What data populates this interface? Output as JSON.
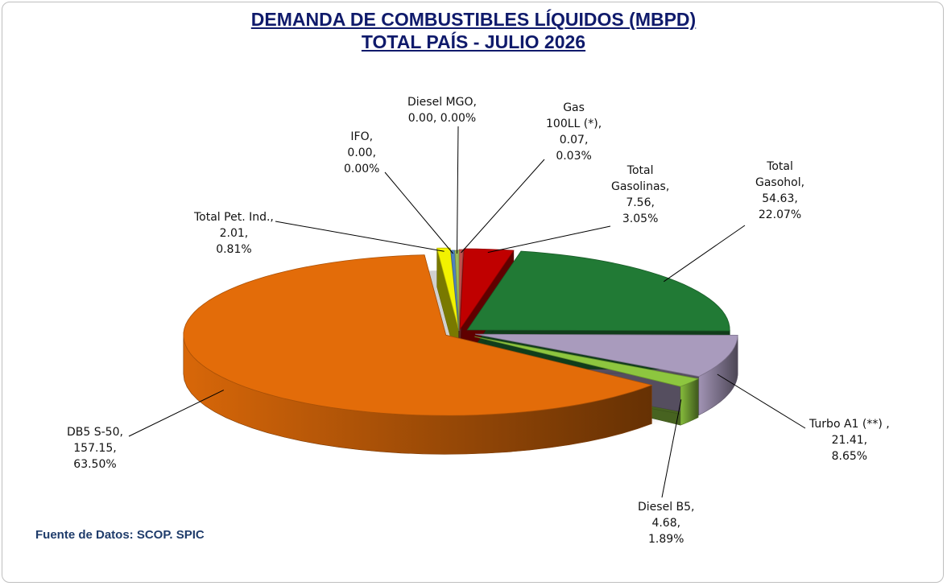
{
  "header": {
    "title_line1": "DEMANDA DE COMBUSTIBLES LÍQUIDOS (MBPD)",
    "title_line2": "TOTAL PAÍS  - JULIO 2026"
  },
  "footer": {
    "source": "Fuente de Datos: SCOP. SPIC"
  },
  "chart_data": {
    "type": "pie",
    "title": "DEMANDA DE COMBUSTIBLES LÍQUIDOS (MBPD) TOTAL PAÍS - JULIO 2026",
    "legend": "none (data labels on leader lines)",
    "slices": [
      {
        "name": "Gas 100LL (*)",
        "value": 0.07,
        "percent": 0.03,
        "color": "#c0504d",
        "label_lines": [
          "Gas",
          "100LL (*),",
          "0.07,",
          "0.03%"
        ]
      },
      {
        "name": "Total Gasolinas",
        "value": 7.56,
        "percent": 3.05,
        "color": "#c00000",
        "label_lines": [
          "Total",
          "Gasolinas,",
          "7.56,",
          "3.05%"
        ]
      },
      {
        "name": "Total Gasohol",
        "value": 54.63,
        "percent": 22.07,
        "color": "#217a35",
        "label_lines": [
          "Total",
          "Gasohol,",
          "54.63,",
          "22.07%"
        ]
      },
      {
        "name": "Turbo A1 (**)",
        "value": 21.41,
        "percent": 8.65,
        "color": "#a99bbd",
        "label_lines": [
          "Turbo A1 (**) ,",
          "21.41,",
          "8.65%"
        ]
      },
      {
        "name": "Diesel B5",
        "value": 4.68,
        "percent": 1.89,
        "color": "#8dc63f",
        "label_lines": [
          "Diesel B5,",
          "4.68,",
          "1.89%"
        ]
      },
      {
        "name": "DB5 S-50",
        "value": 157.15,
        "percent": 63.5,
        "color": "#e36c09",
        "label_lines": [
          "DB5 S-50,",
          "157.15,",
          "63.50%"
        ]
      },
      {
        "name": "Total Pet. Ind.",
        "value": 2.01,
        "percent": 0.81,
        "color": "#f2f200",
        "label_lines": [
          "Total Pet. Ind.,",
          "2.01,",
          "0.81%"
        ]
      },
      {
        "name": "IFO",
        "value": 0.0,
        "percent": 0.0,
        "color": "#4f81bd",
        "label_lines": [
          "IFO,",
          "0.00,",
          "0.00%"
        ]
      },
      {
        "name": "Diesel MGO",
        "value": 0.0,
        "percent": 0.0,
        "color": "#9bbb59",
        "label_lines": [
          "Diesel MGO,",
          "0.00, 0.00%"
        ]
      }
    ]
  }
}
